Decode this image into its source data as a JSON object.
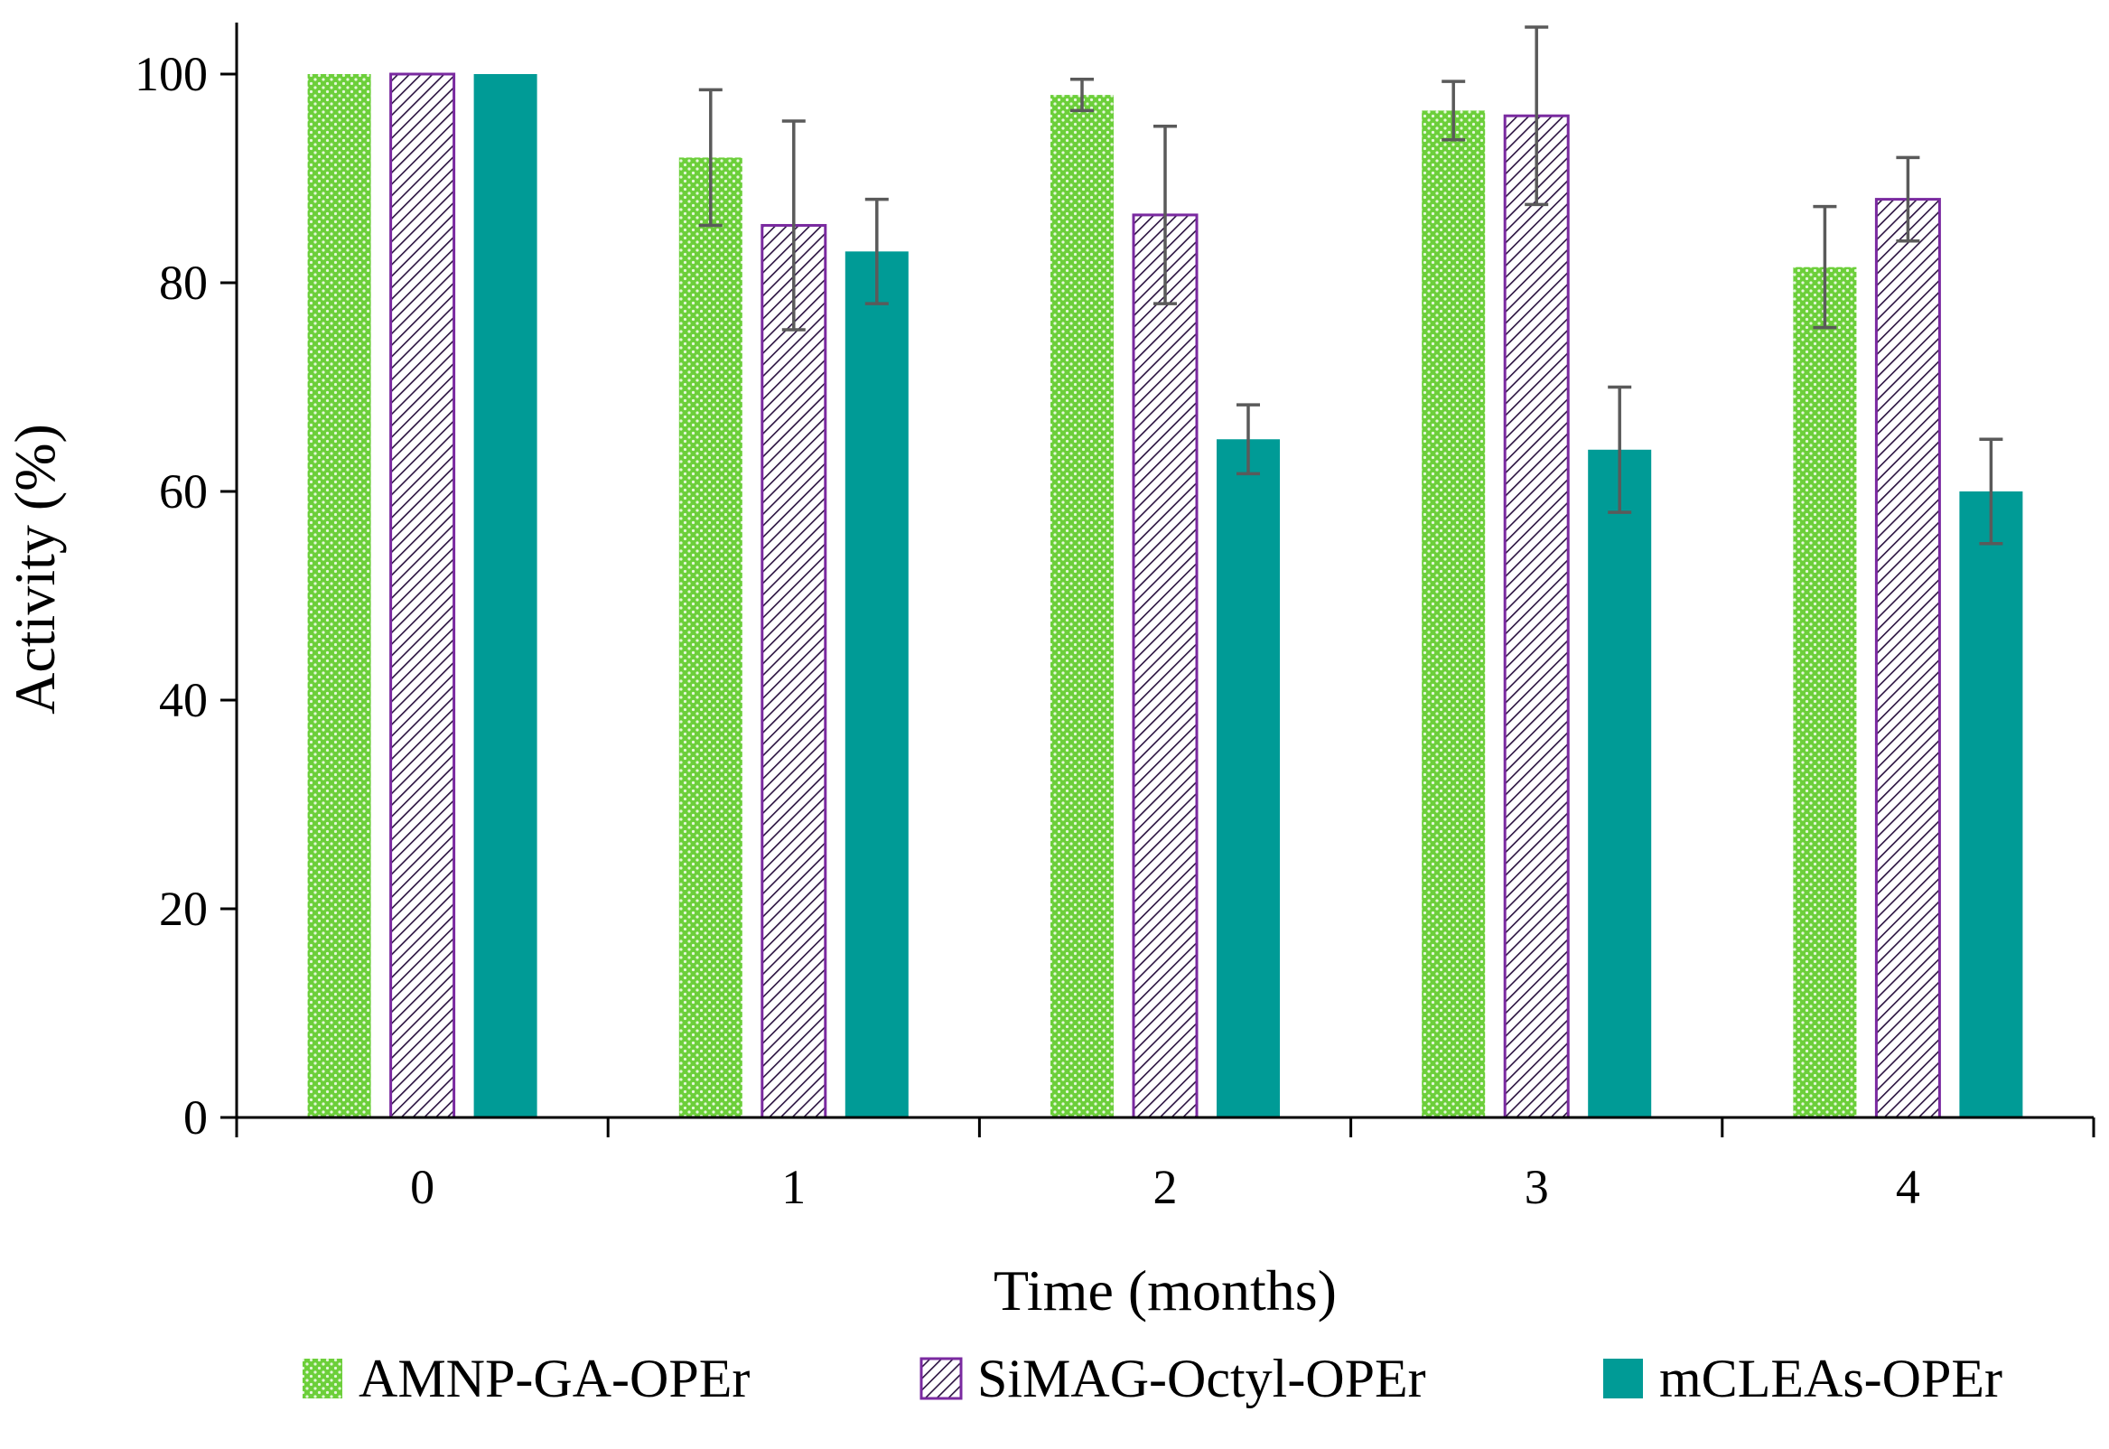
{
  "chart_data": {
    "type": "bar",
    "title": "",
    "xlabel": "Time (months)",
    "ylabel": "Activity (%)",
    "categories": [
      "0",
      "1",
      "2",
      "3",
      "4"
    ],
    "ylim": [
      0,
      100
    ],
    "yticks": [
      "0",
      "20",
      "40",
      "60",
      "80",
      "100"
    ],
    "grid": false,
    "legend_position": "bottom",
    "series": [
      {
        "name": "AMNP-GA-OPEr",
        "pattern": "dots",
        "color": "#6ccf3a",
        "values": [
          100,
          92,
          98,
          96.5,
          81.5
        ],
        "errors": [
          0,
          6.5,
          1.5,
          2.8,
          5.8
        ]
      },
      {
        "name": "SiMAG-Octyl-OPEr",
        "pattern": "hatch",
        "color": "#7a2aa0",
        "values": [
          100,
          85.5,
          86.5,
          96,
          88
        ],
        "errors": [
          0,
          10,
          8.5,
          8.5,
          4
        ]
      },
      {
        "name": "mCLEAs-OPEr",
        "pattern": "solid",
        "color": "#009b96",
        "values": [
          100,
          83,
          65,
          64,
          60
        ],
        "errors": [
          0,
          5,
          3.3,
          6,
          5
        ]
      }
    ]
  }
}
